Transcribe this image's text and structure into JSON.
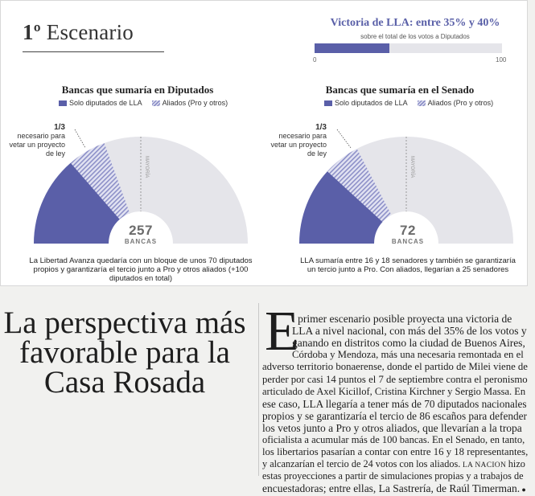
{
  "scenario": {
    "number": "1º",
    "label": "Escenario"
  },
  "victory": {
    "title": "Victoria de LLA: entre 35% y 40%",
    "subtitle": "sobre el total de los votos a Diputados",
    "axis_min": "0",
    "axis_max": "100",
    "progress_percent": 40
  },
  "colors": {
    "lla": "#5a5fa8",
    "allies": "#8d90c8",
    "empty": "#e5e5ea"
  },
  "legend": {
    "lla": "Solo diputados de LLA",
    "allies": "Aliados (Pro y otros)"
  },
  "third_note": {
    "fraction": "1/3",
    "text_lines": [
      "necesario para",
      "vetar un proyecto",
      "de ley"
    ]
  },
  "chart_data": [
    {
      "type": "half-donut",
      "title": "Bancas que sumaría en Diputados",
      "total": 257,
      "total_label": "BANCAS",
      "mid_label": "MAYORÍA",
      "series": [
        {
          "name": "Solo diputados de LLA",
          "value": 70
        },
        {
          "name": "Aliados (Pro y otros)",
          "value": 30
        }
      ],
      "threshold_fraction": 0.333,
      "majority_fraction": 0.5,
      "caption": "La Libertad Avanza quedaría con un bloque de unos 70 diputados propios y garantizaría el tercio junto a Pro y otros aliados (+100 diputados en total)"
    },
    {
      "type": "half-donut",
      "title": "Bancas que sumaría en el Senado",
      "total": 72,
      "total_label": "BANCAS",
      "mid_label": "MAYORÍA",
      "series": [
        {
          "name": "Solo diputados de LLA",
          "value": 17
        },
        {
          "name": "Aliados (Pro y otros)",
          "value": 8
        }
      ],
      "threshold_fraction": 0.333,
      "majority_fraction": 0.5,
      "caption": "LLA sumaría entre 16 y 18 senadores y también se garantizaría un tercio junto a Pro. Con aliados, llegarían a 25 senadores"
    }
  ],
  "headline": "La perspectiva más favorable para la Casa Rosada",
  "article": {
    "dropcap": "E",
    "lines": [
      "l primer escenario posible proyecta una victoria de",
      "LLA a nivel nacional, con más del 35% de los votos y",
      "ganando en distritos como la ciudad de Buenos Aires,",
      "Córdoba y Mendoza, más una necesaria remontada en el",
      "adverso territorio bonaerense, donde el partido de Milei viene de",
      "perder por casi 14 puntos el 7 de septiembre contra el peronismo",
      "articulado de Axel Kicillof, Cristina Kirchner y Sergio Massa. En",
      "ese caso, LLA llegaría a tener más de 70 diputados nacionales",
      "propios y se garantizaría el tercio de 86 escaños para defender",
      "los vetos junto a Pro y otros aliados, que llevarían a la tropa",
      "oficialista a acumular más de 100 bancas. En el Senado, en tanto,",
      "los libertarios pasarían a contar con entre 16 y 18 representantes,",
      "y alcanzarían el tercio de 24 votos con los aliados.",
      "estas proyecciones a partir de simulaciones propias y a trabajos de",
      "encuestadoras; entre ellas, La Sastrería, de Raúl Timerman."
    ],
    "byline_brand": "LA NACION",
    "line13_tail": "hizo"
  }
}
